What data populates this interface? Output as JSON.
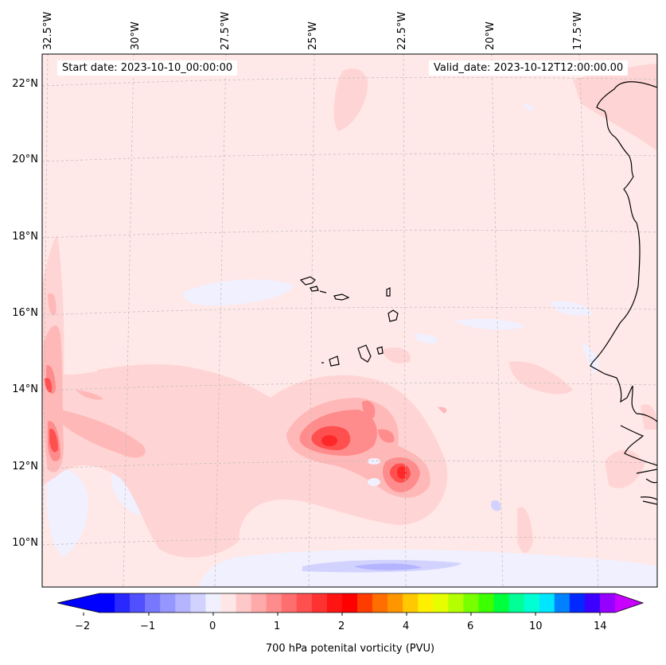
{
  "header": {
    "start_date": "Start date: 2023-10-10_00:00:00",
    "valid_date": "Valid_date: 2023-10-12T12:00:00.00"
  },
  "map": {
    "longitude_labels": [
      "32.5°W",
      "30°W",
      "27.5°W",
      "25°W",
      "22.5°W",
      "20°W",
      "17.5°W"
    ],
    "latitude_labels": [
      "22°N",
      "20°N",
      "18°N",
      "16°N",
      "14°N",
      "12°N",
      "10°N"
    ],
    "colors": {
      "land_outline": "#000000",
      "background_field": "#ffe8e8",
      "gridline": "#bbbbbb"
    }
  },
  "colorbar": {
    "label": "700 hPa potenital vorticity (PVU)",
    "tick_labels": [
      "−2",
      "−1",
      "0",
      "1",
      "2",
      "4",
      "6",
      "10",
      "14"
    ],
    "colors": [
      "#0000ff",
      "#2828ff",
      "#5050ff",
      "#7878ff",
      "#9696ff",
      "#b4b4ff",
      "#d2d2ff",
      "#f0f0ff",
      "#ffe6e6",
      "#ffc8c8",
      "#ffaaaa",
      "#ff8c8c",
      "#ff6e6e",
      "#ff5050",
      "#ff3232",
      "#ff1414",
      "#ff0000",
      "#ff3c00",
      "#ff6e00",
      "#ff9600",
      "#ffc800",
      "#fff000",
      "#e6ff00",
      "#b4ff00",
      "#78ff00",
      "#3cff00",
      "#00ff3c",
      "#00ff96",
      "#00ffd2",
      "#00e6ff",
      "#0082ff",
      "#0028ff",
      "#3c00ff",
      "#9600ff"
    ]
  }
}
